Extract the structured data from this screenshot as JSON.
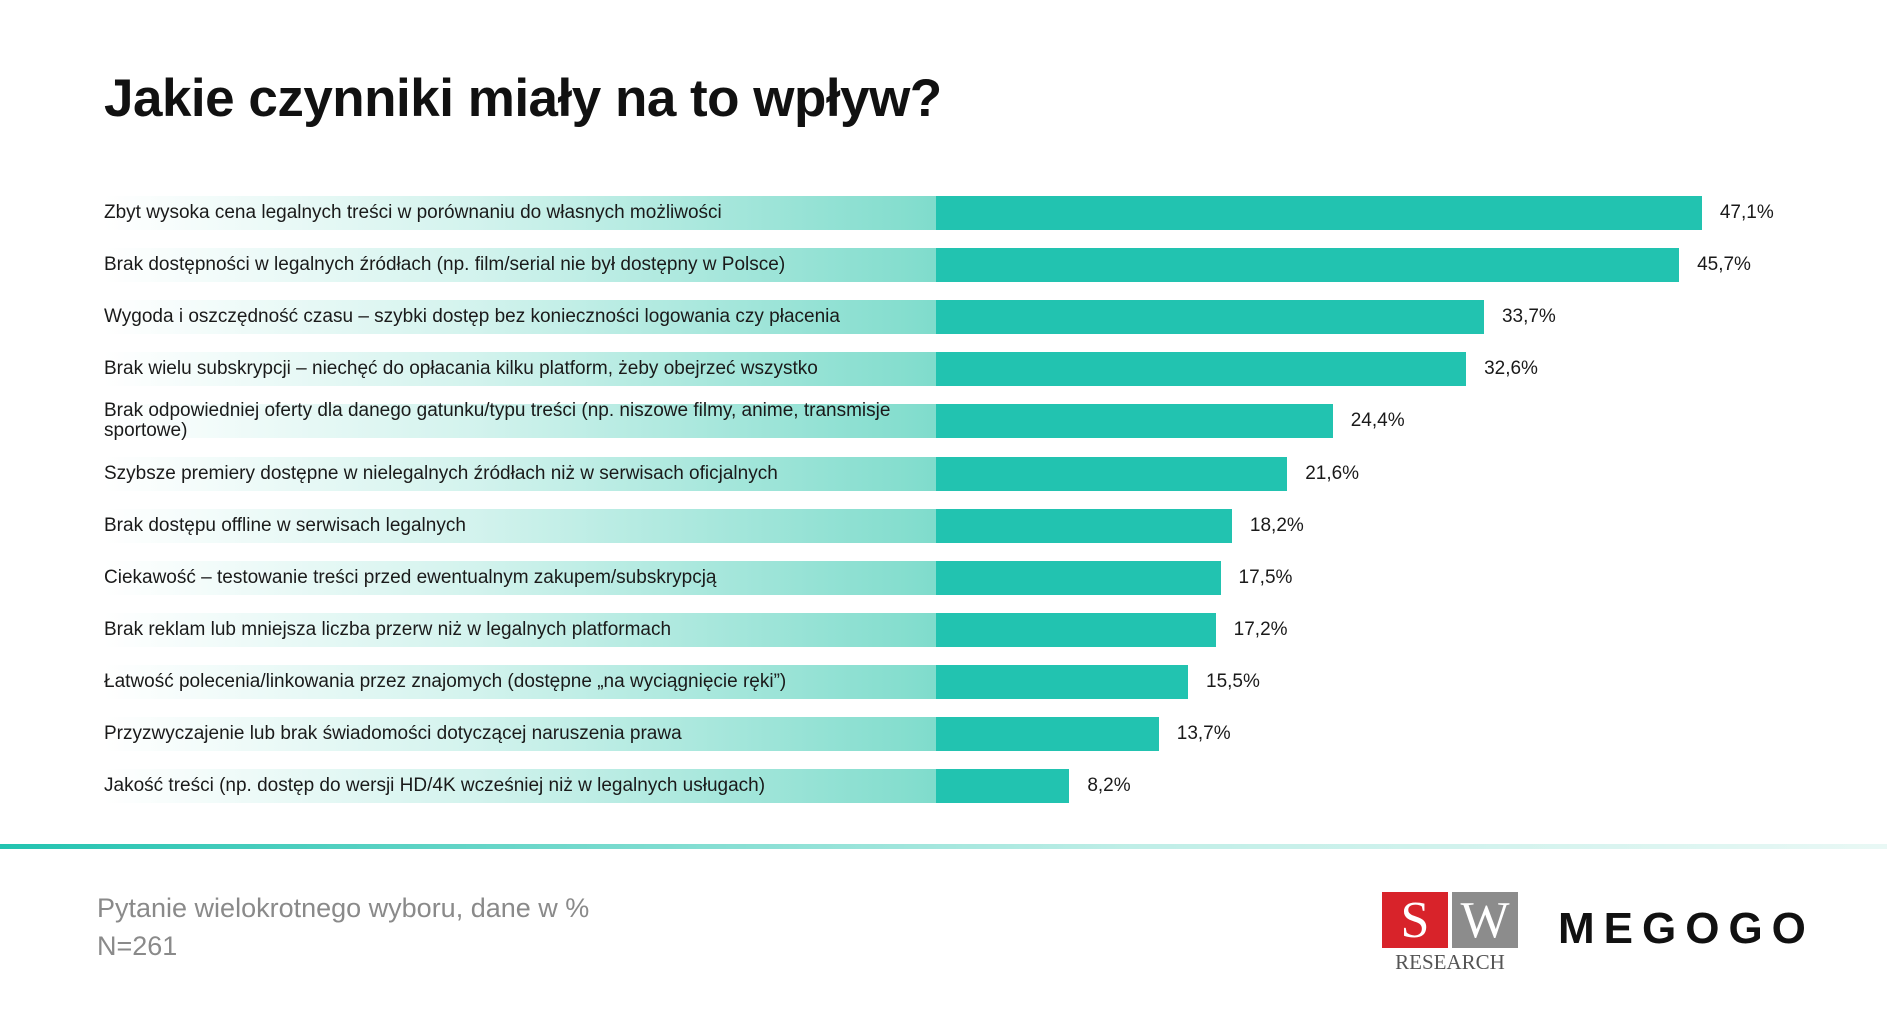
{
  "chart_data": {
    "type": "bar",
    "orientation": "horizontal",
    "title": "Jakie czynniki miały na to wpływ?",
    "categories": [
      "Zbyt wysoka cena legalnych treści w porównaniu do własnych możliwości",
      "Brak dostępności w legalnych źródłach (np. film/serial nie był dostępny w Polsce)",
      "Wygoda i oszczędność czasu – szybki dostęp bez konieczności logowania czy płacenia",
      "Brak wielu subskrypcji – niechęć do opłacania kilku platform, żeby obejrzeć wszystko",
      "Brak odpowiedniej oferty dla danego gatunku/typu treści (np. niszowe filmy, anime, transmisje sportowe)",
      "Szybsze premiery dostępne w nielegalnych źródłach niż w serwisach oficjalnych",
      "Brak dostępu offline w serwisach legalnych",
      "Ciekawość – testowanie treści przed ewentualnym zakupem/subskrypcją",
      "Brak reklam lub mniejsza liczba przerw niż w legalnych platformach",
      "Łatwość polecenia/linkowania przez znajomych (dostępne „na wyciągnięcie ręki”)",
      "Przyzwyczajenie lub brak świadomości dotyczącej naruszenia prawa",
      "Jakość treści (np. dostęp do wersji HD/4K wcześniej niż w legalnych usługach)"
    ],
    "values": [
      47.1,
      45.7,
      33.7,
      32.6,
      24.4,
      21.6,
      18.2,
      17.5,
      17.2,
      15.5,
      13.7,
      8.2
    ],
    "value_labels": [
      "47,1%",
      "45,7%",
      "33,7%",
      "32,6%",
      "24,4%",
      "21,6%",
      "18,2%",
      "17,5%",
      "17,2%",
      "15,5%",
      "13,7%",
      "8,2%"
    ],
    "color": "#22c3b0",
    "xlim": [
      0,
      50
    ]
  },
  "footer": {
    "note": "Pytanie wielokrotnego wyboru, dane w %",
    "sample": "N=261",
    "logos": {
      "sw_letters": [
        "S",
        "W"
      ],
      "sw_caption": "RESEARCH",
      "megogo": "MEGOGO"
    }
  }
}
